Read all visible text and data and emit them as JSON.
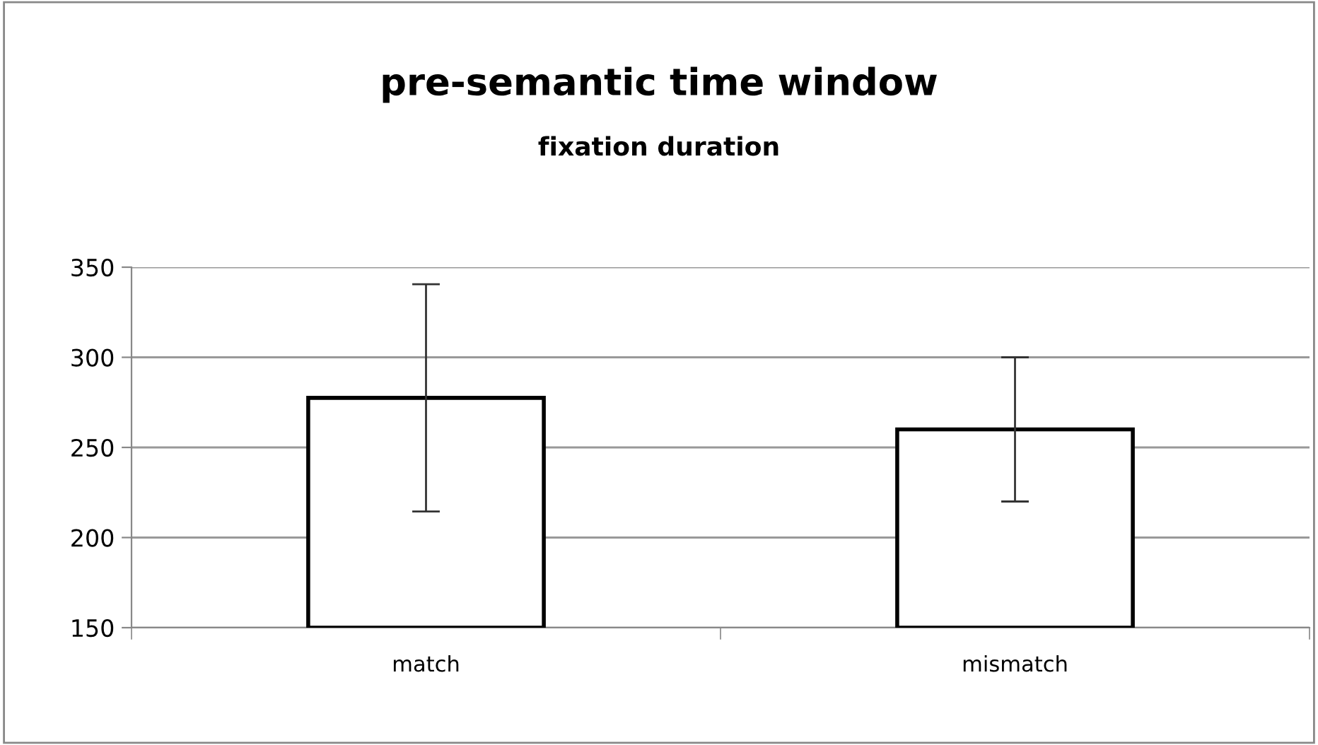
{
  "chart_data": {
    "type": "bar",
    "title": "pre-semantic time window",
    "subtitle": "fixation duration",
    "categories": [
      "match",
      "mismatch"
    ],
    "values": [
      277.5,
      260
    ],
    "errors": [
      63,
      40
    ],
    "color": "#ffffff",
    "ylim": [
      150,
      350
    ],
    "yticks": [
      150,
      200,
      250,
      300,
      350
    ],
    "grid": "y"
  }
}
